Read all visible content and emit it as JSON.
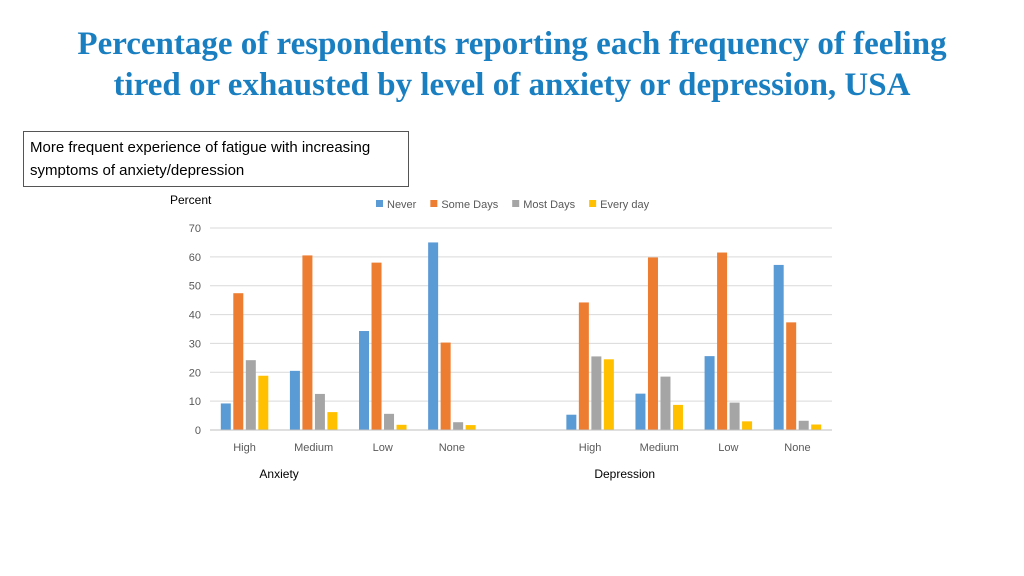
{
  "slide": {
    "title": "Percentage of respondents reporting each frequency of feeling tired or exhausted by level of anxiety or depression, USA",
    "note": "More frequent experience of fatigue with increasing symptoms of anxiety/depression"
  },
  "chart_data": {
    "type": "bar",
    "title": "",
    "ylabel": "Percent",
    "ylim": [
      0,
      70
    ],
    "yticks": [
      0,
      10,
      20,
      30,
      40,
      50,
      60,
      70
    ],
    "grid": true,
    "legend_position": "top-center",
    "groups": [
      {
        "label": "Anxiety",
        "categories": [
          "High",
          "Medium",
          "Low",
          "None"
        ]
      },
      {
        "label": "Depression",
        "categories": [
          "High",
          "Medium",
          "Low",
          "None"
        ]
      }
    ],
    "series": [
      {
        "name": "Never",
        "color": "#5b9bd5",
        "values": [
          9.2,
          20.5,
          34.3,
          65.0,
          5.3,
          12.6,
          25.6,
          57.2
        ]
      },
      {
        "name": "Some Days",
        "color": "#ed7d31",
        "values": [
          47.4,
          60.5,
          58.0,
          30.3,
          44.2,
          59.8,
          61.5,
          37.3
        ]
      },
      {
        "name": "Most Days",
        "color": "#a5a5a5",
        "values": [
          24.2,
          12.5,
          5.6,
          2.7,
          25.5,
          18.5,
          9.5,
          3.2
        ]
      },
      {
        "name": "Every day",
        "color": "#ffc000",
        "values": [
          18.8,
          6.2,
          1.8,
          1.7,
          24.5,
          8.7,
          3.0,
          1.9
        ]
      }
    ]
  }
}
